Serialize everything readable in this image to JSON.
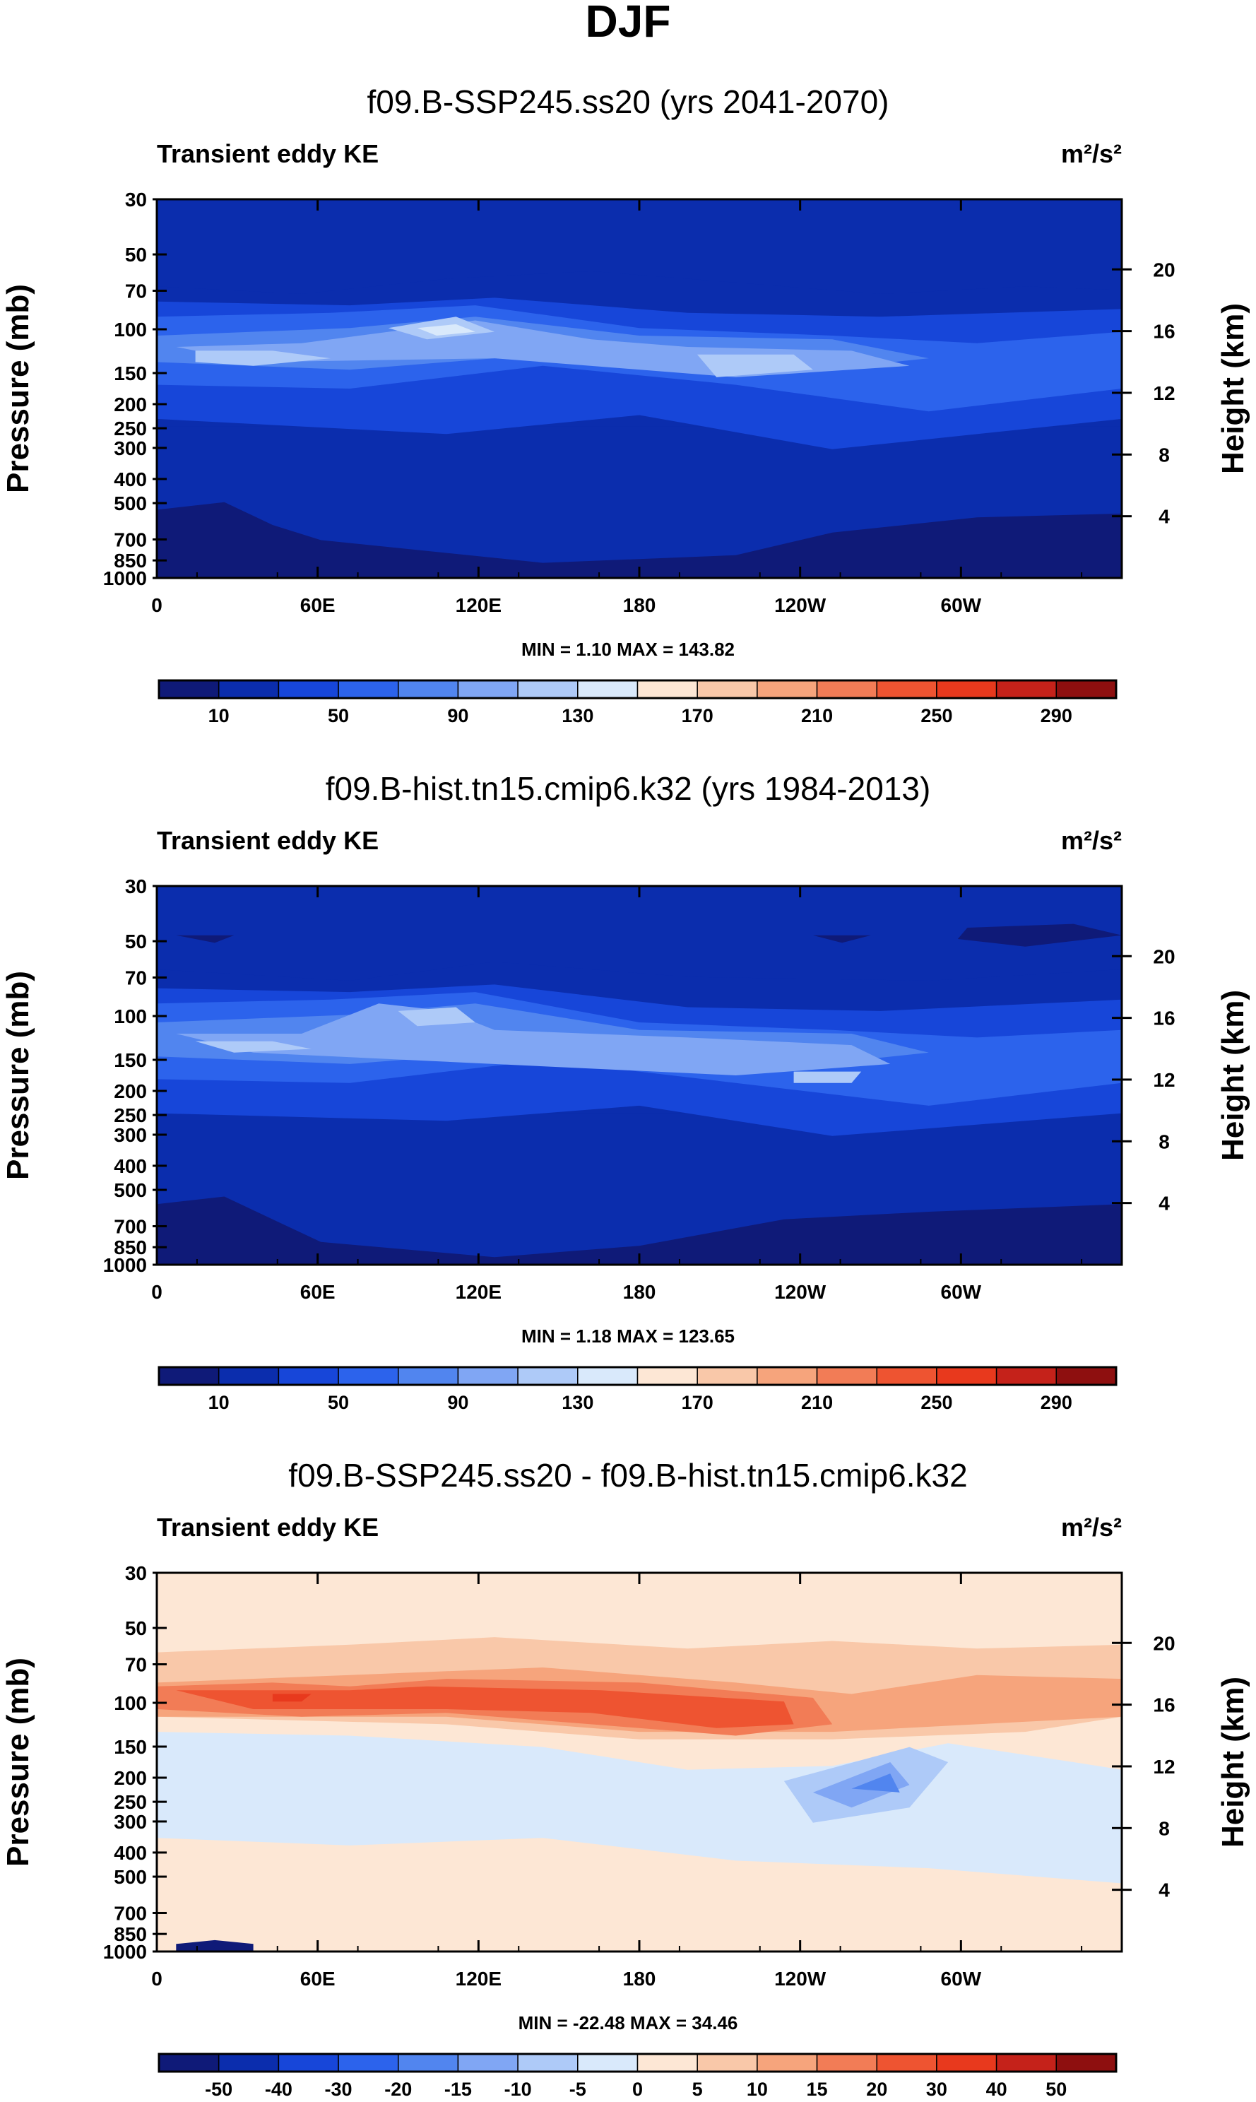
{
  "figure": {
    "title": "DJF"
  },
  "chart_data": [
    {
      "type": "heatmap",
      "title": "f09.B-SSP245.ss20 (yrs 2041-2070)",
      "left_label": "Transient eddy KE",
      "units": "m²/s²",
      "ylabel": "Pressure (mb)",
      "y2label": "Height (km)",
      "x_ticks": [
        "0",
        "60E",
        "120E",
        "180",
        "120W",
        "60W"
      ],
      "y_ticks": [
        "30",
        "50",
        "70",
        "100",
        "150",
        "200",
        "250",
        "300",
        "400",
        "500",
        "700",
        "850",
        "1000"
      ],
      "y2_ticks": [
        "20",
        "16",
        "12",
        "8",
        "4"
      ],
      "stats": "MIN =   1.10  MAX = 143.82",
      "colorbar_labels": [
        "10",
        "50",
        "90",
        "130",
        "170",
        "210",
        "250",
        "290"
      ],
      "colors": [
        "#0f1a78",
        "#0b2dad",
        "#1746d9",
        "#2c63ec",
        "#5185ef",
        "#80a6f4",
        "#aecaf8",
        "#d9e9fb",
        "#fde7d5",
        "#f9c8a9",
        "#f6a47c",
        "#f27c56",
        "#ee5431",
        "#e8391d",
        "#c5221a",
        "#8e0f0f"
      ]
    },
    {
      "type": "heatmap",
      "title": "f09.B-hist.tn15.cmip6.k32 (yrs 1984-2013)",
      "left_label": "Transient eddy KE",
      "units": "m²/s²",
      "ylabel": "Pressure (mb)",
      "y2label": "Height (km)",
      "x_ticks": [
        "0",
        "60E",
        "120E",
        "180",
        "120W",
        "60W"
      ],
      "y_ticks": [
        "30",
        "50",
        "70",
        "100",
        "150",
        "200",
        "250",
        "300",
        "400",
        "500",
        "700",
        "850",
        "1000"
      ],
      "y2_ticks": [
        "20",
        "16",
        "12",
        "8",
        "4"
      ],
      "stats": "MIN =   1.18  MAX = 123.65",
      "colorbar_labels": [
        "10",
        "50",
        "90",
        "130",
        "170",
        "210",
        "250",
        "290"
      ],
      "colors": [
        "#0f1a78",
        "#0b2dad",
        "#1746d9",
        "#2c63ec",
        "#5185ef",
        "#80a6f4",
        "#aecaf8",
        "#d9e9fb",
        "#fde7d5",
        "#f9c8a9",
        "#f6a47c",
        "#f27c56",
        "#ee5431",
        "#e8391d",
        "#c5221a",
        "#8e0f0f"
      ]
    },
    {
      "type": "heatmap",
      "title": "f09.B-SSP245.ss20 - f09.B-hist.tn15.cmip6.k32",
      "left_label": "Transient eddy KE",
      "units": "m²/s²",
      "ylabel": "Pressure (mb)",
      "y2label": "Height (km)",
      "x_ticks": [
        "0",
        "60E",
        "120E",
        "180",
        "120W",
        "60W"
      ],
      "y_ticks": [
        "30",
        "50",
        "70",
        "100",
        "150",
        "200",
        "250",
        "300",
        "400",
        "500",
        "700",
        "850",
        "1000"
      ],
      "y2_ticks": [
        "20",
        "16",
        "12",
        "8",
        "4"
      ],
      "stats": "MIN = -22.48  MAX = 34.46",
      "colorbar_labels": [
        "-50",
        "-40",
        "-30",
        "-20",
        "-15",
        "-10",
        "-5",
        "0",
        "5",
        "10",
        "15",
        "20",
        "30",
        "40",
        "50"
      ],
      "colors": [
        "#0f1a78",
        "#0b2dad",
        "#1746d9",
        "#2c63ec",
        "#5185ef",
        "#80a6f4",
        "#aecaf8",
        "#d9e9fb",
        "#fde7d5",
        "#f9c8a9",
        "#f6a47c",
        "#f27c56",
        "#ee5431",
        "#e8391d",
        "#c5221a",
        "#8e0f0f"
      ]
    }
  ]
}
